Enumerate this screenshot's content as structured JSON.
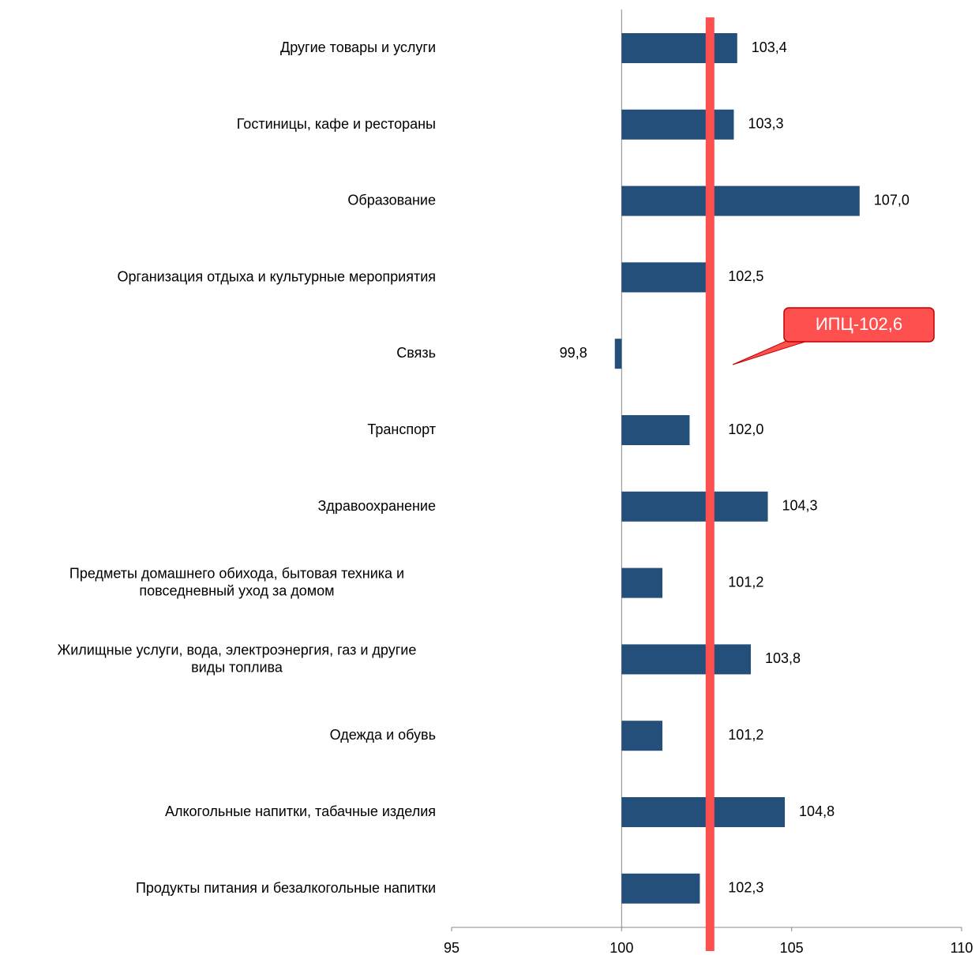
{
  "chart_data": {
    "type": "bar",
    "orientation": "horizontal",
    "categories": [
      "Другие товары и услуги",
      "Гостиницы, кафе и рестораны",
      "Образование",
      "Организация отдыха и культурные мероприятия",
      "Связь",
      "Транспорт",
      "Здравоохранение",
      "Предметы домашнего обихода, бытовая техника и повседневный уход за домом",
      "Жилищные услуги, вода, электроэнергия, газ и другие виды топлива",
      "Одежда и обувь",
      "Алкогольные напитки, табачные изделия",
      "Продукты питания и безалкогольные напитки"
    ],
    "values": [
      103.4,
      103.3,
      107.0,
      102.5,
      99.8,
      102.0,
      104.3,
      101.2,
      103.8,
      101.2,
      104.8,
      102.3
    ],
    "value_labels": [
      "103,4",
      "103,3",
      "107,0",
      "102,5",
      "99,8",
      "102,0",
      "104,3",
      "101,2",
      "103,8",
      "101,2",
      "104,8",
      "102,3"
    ],
    "base": 100,
    "color": "#234f7a",
    "xlim": [
      95,
      110
    ],
    "xticks": [
      95,
      100,
      105,
      110
    ],
    "reference": {
      "value": 102.6,
      "label": "ИПЦ-102,6",
      "color": "#ff5050"
    }
  }
}
